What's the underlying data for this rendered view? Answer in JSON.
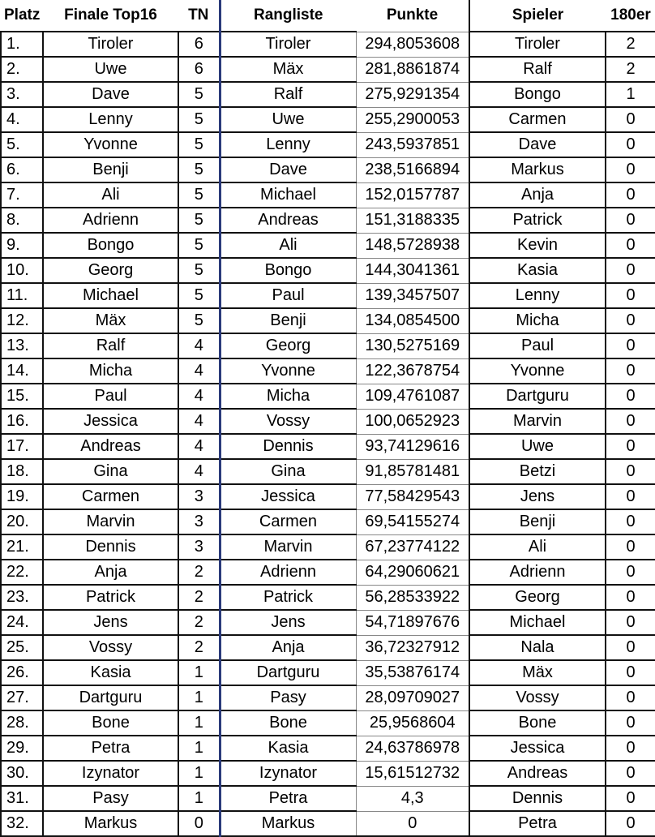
{
  "headers": [
    "Platz",
    "Finale Top16",
    "TN",
    "Rangliste",
    "Punkte",
    "Spieler",
    "180er"
  ],
  "rows": [
    [
      "1.",
      "Tiroler",
      "6",
      "Tiroler",
      "294,8053608",
      "Tiroler",
      "2"
    ],
    [
      "2.",
      "Uwe",
      "6",
      "Mäx",
      "281,8861874",
      "Ralf",
      "2"
    ],
    [
      "3.",
      "Dave",
      "5",
      "Ralf",
      "275,9291354",
      "Bongo",
      "1"
    ],
    [
      "4.",
      "Lenny",
      "5",
      "Uwe",
      "255,2900053",
      "Carmen",
      "0"
    ],
    [
      "5.",
      "Yvonne",
      "5",
      "Lenny",
      "243,5937851",
      "Dave",
      "0"
    ],
    [
      "6.",
      "Benji",
      "5",
      "Dave",
      "238,5166894",
      "Markus",
      "0"
    ],
    [
      "7.",
      "Ali",
      "5",
      "Michael",
      "152,0157787",
      "Anja",
      "0"
    ],
    [
      "8.",
      "Adrienn",
      "5",
      "Andreas",
      "151,3188335",
      "Patrick",
      "0"
    ],
    [
      "9.",
      "Bongo",
      "5",
      "Ali",
      "148,5728938",
      "Kevin",
      "0"
    ],
    [
      "10.",
      "Georg",
      "5",
      "Bongo",
      "144,3041361",
      "Kasia",
      "0"
    ],
    [
      "11.",
      "Michael",
      "5",
      "Paul",
      "139,3457507",
      "Lenny",
      "0"
    ],
    [
      "12.",
      "Mäx",
      "5",
      "Benji",
      "134,0854500",
      "Micha",
      "0"
    ],
    [
      "13.",
      "Ralf",
      "4",
      "Georg",
      "130,5275169",
      "Paul",
      "0"
    ],
    [
      "14.",
      "Micha",
      "4",
      "Yvonne",
      "122,3678754",
      "Yvonne",
      "0"
    ],
    [
      "15.",
      "Paul",
      "4",
      "Micha",
      "109,4761087",
      "Dartguru",
      "0"
    ],
    [
      "16.",
      "Jessica",
      "4",
      "Vossy",
      "100,0652923",
      "Marvin",
      "0"
    ],
    [
      "17.",
      "Andreas",
      "4",
      "Dennis",
      "93,74129616",
      "Uwe",
      "0"
    ],
    [
      "18.",
      "Gina",
      "4",
      "Gina",
      "91,85781481",
      "Betzi",
      "0"
    ],
    [
      "19.",
      "Carmen",
      "3",
      "Jessica",
      "77,58429543",
      "Jens",
      "0"
    ],
    [
      "20.",
      "Marvin",
      "3",
      "Carmen",
      "69,54155274",
      "Benji",
      "0"
    ],
    [
      "21.",
      "Dennis",
      "3",
      "Marvin",
      "67,23774122",
      "Ali",
      "0"
    ],
    [
      "22.",
      "Anja",
      "2",
      "Adrienn",
      "64,29060621",
      "Adrienn",
      "0"
    ],
    [
      "23.",
      "Patrick",
      "2",
      "Patrick",
      "56,28533922",
      "Georg",
      "0"
    ],
    [
      "24.",
      "Jens",
      "2",
      "Jens",
      "54,71897676",
      "Michael",
      "0"
    ],
    [
      "25.",
      "Vossy",
      "2",
      "Anja",
      "36,72327912",
      "Nala",
      "0"
    ],
    [
      "26.",
      "Kasia",
      "1",
      "Dartguru",
      "35,53876174",
      "Mäx",
      "0"
    ],
    [
      "27.",
      "Dartguru",
      "1",
      "Pasy",
      "28,09709027",
      "Vossy",
      "0"
    ],
    [
      "28.",
      "Bone",
      "1",
      "Bone",
      "25,9568604",
      "Bone",
      "0"
    ],
    [
      "29.",
      "Petra",
      "1",
      "Kasia",
      "24,63786978",
      "Jessica",
      "0"
    ],
    [
      "30.",
      "Izynator",
      "1",
      "Izynator",
      "15,61512732",
      "Andreas",
      "0"
    ],
    [
      "31.",
      "Pasy",
      "1",
      "Petra",
      "4,3",
      "Dennis",
      "0"
    ],
    [
      "32.",
      "Markus",
      "0",
      "Markus",
      "0",
      "Petra",
      "0"
    ]
  ]
}
